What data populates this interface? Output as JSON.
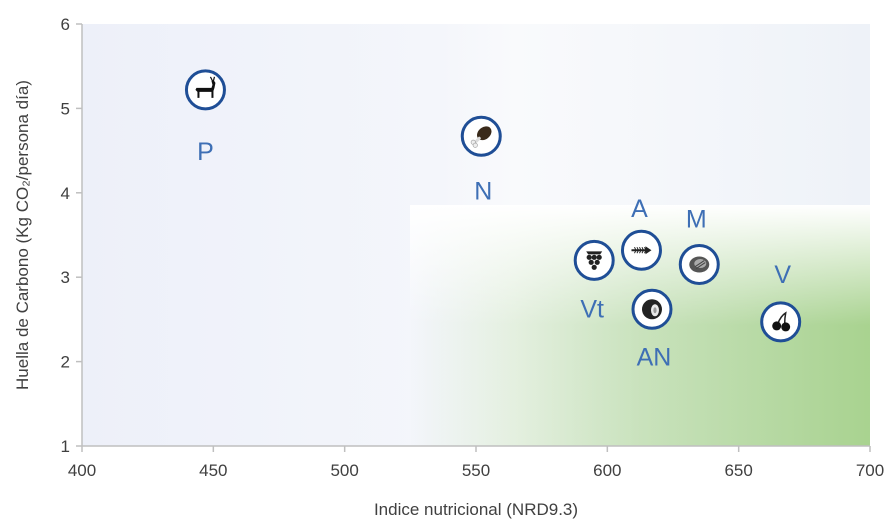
{
  "chart_data": {
    "type": "scatter",
    "title": "",
    "xlabel": "Indice nutricional (NRD9.3)",
    "ylabel": "Huella de Carbono (Kg CO₂/persona día)",
    "xlim": [
      400,
      700
    ],
    "ylim": [
      1,
      6
    ],
    "x_ticks": [
      "400",
      "450",
      "500",
      "550",
      "600",
      "650",
      "700"
    ],
    "y_ticks": [
      "1",
      "2",
      "3",
      "4",
      "5",
      "6"
    ],
    "grid": false,
    "legend": "none",
    "points": [
      {
        "label": "P",
        "x": 447,
        "y": 5.22,
        "icon": "deer-icon"
      },
      {
        "label": "N",
        "x": 552,
        "y": 4.67,
        "icon": "chicken-leg-icon"
      },
      {
        "label": "A",
        "x": 613,
        "y": 3.32,
        "icon": "fish-icon"
      },
      {
        "label": "Vt",
        "x": 595,
        "y": 3.2,
        "icon": "grapes-icon"
      },
      {
        "label": "M",
        "x": 635,
        "y": 3.15,
        "icon": "food-icon"
      },
      {
        "label": "AN",
        "x": 617,
        "y": 2.62,
        "icon": "nut-icon"
      },
      {
        "label": "V",
        "x": 666,
        "y": 2.47,
        "icon": "cherries-icon"
      }
    ],
    "colors": {
      "marker_ring": "#1f4e96",
      "label_text": "#3e6fb5",
      "plot_background": "#eef1f9",
      "highlight_green": "#a5d18a"
    }
  }
}
